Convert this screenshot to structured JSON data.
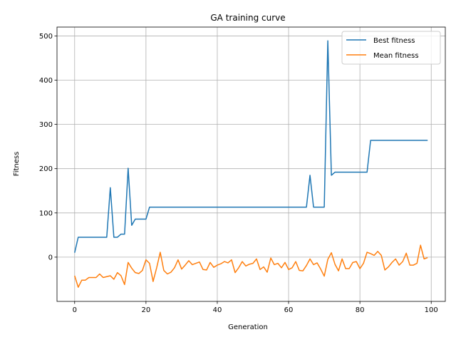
{
  "chart_data": {
    "type": "line",
    "title": "GA training curve",
    "xlabel": "Generation",
    "ylabel": "Fitness",
    "xlim": [
      -4.95,
      103.95
    ],
    "ylim": [
      -100,
      520
    ],
    "xticks": [
      0,
      20,
      40,
      60,
      80,
      100
    ],
    "yticks": [
      0,
      100,
      200,
      300,
      400,
      500
    ],
    "grid": true,
    "legend_position": "top-right",
    "series": [
      {
        "name": "Best fitness",
        "color": "#1f77b4",
        "x": [
          0,
          1,
          2,
          3,
          4,
          5,
          6,
          7,
          8,
          9,
          10,
          11,
          12,
          13,
          14,
          15,
          16,
          17,
          18,
          19,
          20,
          21,
          22,
          23,
          24,
          25,
          26,
          27,
          28,
          29,
          30,
          31,
          32,
          33,
          34,
          35,
          36,
          37,
          38,
          39,
          40,
          41,
          42,
          43,
          44,
          45,
          46,
          47,
          48,
          49,
          50,
          51,
          52,
          53,
          54,
          55,
          56,
          57,
          58,
          59,
          60,
          61,
          62,
          63,
          64,
          65,
          66,
          67,
          68,
          69,
          70,
          71,
          72,
          73,
          74,
          75,
          76,
          77,
          78,
          79,
          80,
          81,
          82,
          83,
          84,
          85,
          86,
          87,
          88,
          89,
          90,
          91,
          92,
          93,
          94,
          95,
          96,
          97,
          98,
          99
        ],
        "values": [
          10,
          45,
          45,
          45,
          45,
          45,
          45,
          45,
          45,
          45,
          157,
          45,
          45,
          52,
          52,
          201,
          72,
          86,
          86,
          86,
          86,
          113,
          113,
          113,
          113,
          113,
          113,
          113,
          113,
          113,
          113,
          113,
          113,
          113,
          113,
          113,
          113,
          113,
          113,
          113,
          113,
          113,
          113,
          113,
          113,
          113,
          113,
          113,
          113,
          113,
          113,
          113,
          113,
          113,
          113,
          113,
          113,
          113,
          113,
          113,
          113,
          113,
          113,
          113,
          113,
          113,
          185,
          113,
          113,
          113,
          113,
          489,
          185,
          192,
          192,
          192,
          192,
          192,
          192,
          192,
          192,
          192,
          192,
          264,
          264,
          264,
          264,
          264,
          264,
          264,
          264,
          264,
          264,
          264,
          264,
          264,
          264,
          264,
          264,
          264
        ]
      },
      {
        "name": "Mean fitness",
        "color": "#ff7f0e",
        "x": [
          0,
          1,
          2,
          3,
          4,
          5,
          6,
          7,
          8,
          9,
          10,
          11,
          12,
          13,
          14,
          15,
          16,
          17,
          18,
          19,
          20,
          21,
          22,
          23,
          24,
          25,
          26,
          27,
          28,
          29,
          30,
          31,
          32,
          33,
          34,
          35,
          36,
          37,
          38,
          39,
          40,
          41,
          42,
          43,
          44,
          45,
          46,
          47,
          48,
          49,
          50,
          51,
          52,
          53,
          54,
          55,
          56,
          57,
          58,
          59,
          60,
          61,
          62,
          63,
          64,
          65,
          66,
          67,
          68,
          69,
          70,
          71,
          72,
          73,
          74,
          75,
          76,
          77,
          78,
          79,
          80,
          81,
          82,
          83,
          84,
          85,
          86,
          87,
          88,
          89,
          90,
          91,
          92,
          93,
          94,
          95,
          96,
          97,
          98,
          99
        ],
        "values": [
          -42,
          -68,
          -52,
          -52,
          -46,
          -46,
          -46,
          -38,
          -46,
          -44,
          -42,
          -50,
          -35,
          -42,
          -62,
          -12,
          -25,
          -35,
          -37,
          -30,
          -6,
          -14,
          -55,
          -24,
          11,
          -30,
          -38,
          -34,
          -24,
          -6,
          -27,
          -18,
          -8,
          -17,
          -14,
          -11,
          -28,
          -29,
          -12,
          -23,
          -18,
          -15,
          -10,
          -13,
          -6,
          -35,
          -24,
          -10,
          -20,
          -16,
          -14,
          -4,
          -28,
          -22,
          -34,
          -2,
          -17,
          -14,
          -24,
          -12,
          -28,
          -24,
          -10,
          -30,
          -31,
          -19,
          -4,
          -17,
          -13,
          -27,
          -43,
          -5,
          10,
          -16,
          -31,
          -4,
          -26,
          -26,
          -12,
          -10,
          -26,
          -14,
          11,
          8,
          4,
          13,
          4,
          -29,
          -22,
          -12,
          -4,
          -18,
          -10,
          9,
          -18,
          -18,
          -14,
          27,
          -4,
          -1
        ]
      }
    ]
  }
}
